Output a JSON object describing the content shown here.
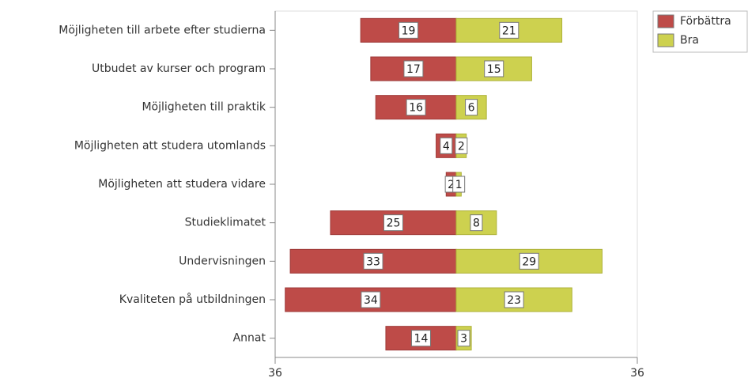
{
  "chart_data": {
    "type": "diverging-bar",
    "categories": [
      "Möjligheten till arbete efter studierna",
      "Utbudet av kurser och program",
      "Möjligheten till praktik",
      "Möjligheten att studera utomlands",
      "Möjligheten att studera vidare",
      "Studieklimatet",
      "Undervisningen",
      "Kvaliteten på utbildningen",
      "Annat"
    ],
    "series": [
      {
        "name": "Förbättra",
        "color": "#be4b48",
        "values": [
          -19,
          -17,
          -16,
          -4,
          -2,
          -25,
          -33,
          -34,
          -14
        ],
        "value_labels": [
          "19",
          "17",
          "16",
          "4",
          "2",
          "25",
          "33",
          "34",
          "14"
        ]
      },
      {
        "name": "Bra",
        "color": "#cdd14f",
        "values": [
          21,
          15,
          6,
          2,
          1,
          8,
          29,
          23,
          3
        ]
      }
    ],
    "xlim": [
      -36,
      36
    ],
    "xticks": [
      {
        "value": -36,
        "label": "36"
      },
      {
        "value": 36,
        "label": "36"
      }
    ],
    "legend": "top-right"
  }
}
